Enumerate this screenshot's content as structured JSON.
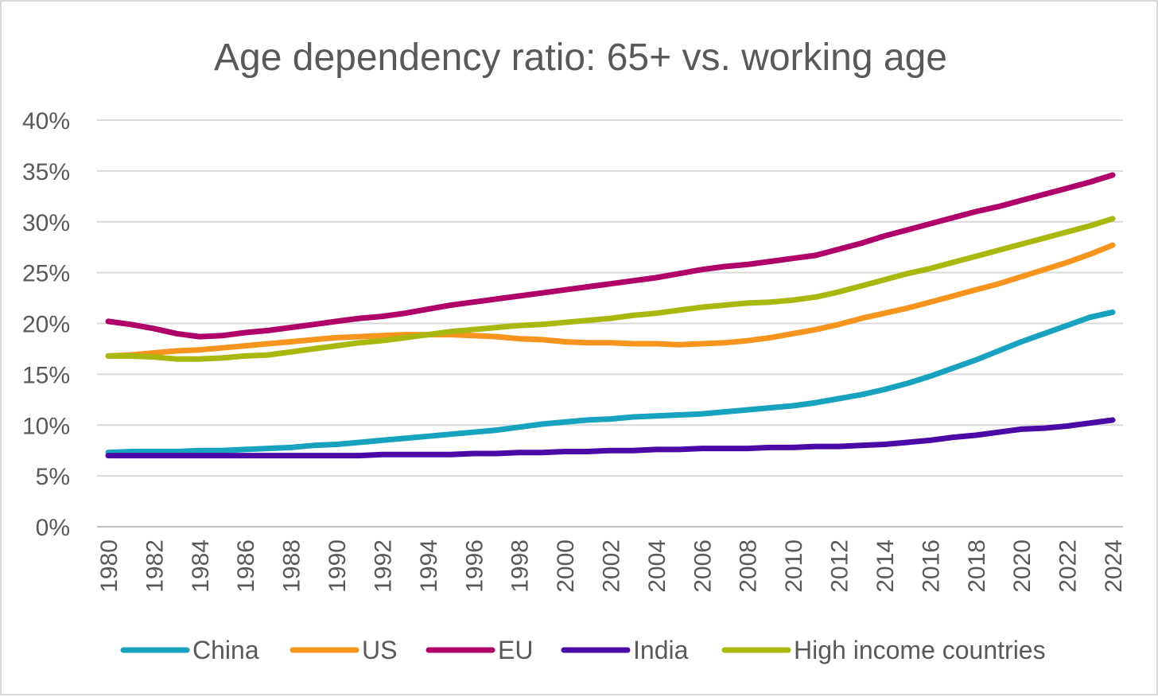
{
  "chart_data": {
    "type": "line",
    "title": "Age dependency ratio: 65+ vs. working age",
    "xlabel": "",
    "ylabel": "",
    "ylim": [
      0,
      40
    ],
    "y_ticks": [
      "0%",
      "5%",
      "10%",
      "15%",
      "20%",
      "25%",
      "30%",
      "35%",
      "40%"
    ],
    "y_tick_values": [
      0,
      5,
      10,
      15,
      20,
      25,
      30,
      35,
      40
    ],
    "grid": true,
    "legend_position": "bottom",
    "x": [
      1980,
      1981,
      1982,
      1983,
      1984,
      1985,
      1986,
      1987,
      1988,
      1989,
      1990,
      1991,
      1992,
      1993,
      1994,
      1995,
      1996,
      1997,
      1998,
      1999,
      2000,
      2001,
      2002,
      2003,
      2004,
      2005,
      2006,
      2007,
      2008,
      2009,
      2010,
      2011,
      2012,
      2013,
      2014,
      2015,
      2016,
      2017,
      2018,
      2019,
      2020,
      2021,
      2022,
      2023,
      2024
    ],
    "x_tick_labels": [
      "1980",
      "1982",
      "1984",
      "1986",
      "1988",
      "1990",
      "1992",
      "1994",
      "1996",
      "1998",
      "2000",
      "2002",
      "2004",
      "2006",
      "2008",
      "2010",
      "2012",
      "2014",
      "2016",
      "2018",
      "2020",
      "2022",
      "2024"
    ],
    "series": [
      {
        "name": "China",
        "color": "#17a2bf",
        "values": [
          7.3,
          7.4,
          7.4,
          7.4,
          7.5,
          7.5,
          7.6,
          7.7,
          7.8,
          8.0,
          8.1,
          8.3,
          8.5,
          8.7,
          8.9,
          9.1,
          9.3,
          9.5,
          9.8,
          10.1,
          10.3,
          10.5,
          10.6,
          10.8,
          10.9,
          11.0,
          11.1,
          11.3,
          11.5,
          11.7,
          11.9,
          12.2,
          12.6,
          13.0,
          13.5,
          14.1,
          14.8,
          15.6,
          16.4,
          17.3,
          18.2,
          19.0,
          19.8,
          20.6,
          21.1
        ]
      },
      {
        "name": "US",
        "color": "#f7941d",
        "values": [
          16.8,
          16.9,
          17.1,
          17.3,
          17.4,
          17.6,
          17.8,
          18.0,
          18.2,
          18.4,
          18.6,
          18.7,
          18.8,
          18.9,
          18.9,
          18.9,
          18.8,
          18.7,
          18.5,
          18.4,
          18.2,
          18.1,
          18.1,
          18.0,
          18.0,
          17.9,
          18.0,
          18.1,
          18.3,
          18.6,
          19.0,
          19.4,
          19.9,
          20.5,
          21.0,
          21.5,
          22.1,
          22.7,
          23.3,
          23.9,
          24.6,
          25.3,
          26.0,
          26.8,
          27.7
        ]
      },
      {
        "name": "EU",
        "color": "#b0006a",
        "values": [
          20.2,
          19.9,
          19.5,
          19.0,
          18.7,
          18.8,
          19.1,
          19.3,
          19.6,
          19.9,
          20.2,
          20.5,
          20.7,
          21.0,
          21.4,
          21.8,
          22.1,
          22.4,
          22.7,
          23.0,
          23.3,
          23.6,
          23.9,
          24.2,
          24.5,
          24.9,
          25.3,
          25.6,
          25.8,
          26.1,
          26.4,
          26.7,
          27.3,
          27.9,
          28.6,
          29.2,
          29.8,
          30.4,
          31.0,
          31.5,
          32.1,
          32.7,
          33.3,
          33.9,
          34.6
        ]
      },
      {
        "name": "India",
        "color": "#4b0aa8",
        "values": [
          7.0,
          7.0,
          7.0,
          7.0,
          7.0,
          7.0,
          7.0,
          7.0,
          7.0,
          7.0,
          7.0,
          7.0,
          7.1,
          7.1,
          7.1,
          7.1,
          7.2,
          7.2,
          7.3,
          7.3,
          7.4,
          7.4,
          7.5,
          7.5,
          7.6,
          7.6,
          7.7,
          7.7,
          7.7,
          7.8,
          7.8,
          7.9,
          7.9,
          8.0,
          8.1,
          8.3,
          8.5,
          8.8,
          9.0,
          9.3,
          9.6,
          9.7,
          9.9,
          10.2,
          10.5
        ]
      },
      {
        "name": "High income countries",
        "color": "#a8b80f",
        "values": [
          16.8,
          16.8,
          16.7,
          16.5,
          16.5,
          16.6,
          16.8,
          16.9,
          17.2,
          17.5,
          17.8,
          18.1,
          18.3,
          18.6,
          18.9,
          19.2,
          19.4,
          19.6,
          19.8,
          19.9,
          20.1,
          20.3,
          20.5,
          20.8,
          21.0,
          21.3,
          21.6,
          21.8,
          22.0,
          22.1,
          22.3,
          22.6,
          23.1,
          23.7,
          24.3,
          24.9,
          25.4,
          26.0,
          26.6,
          27.2,
          27.8,
          28.4,
          29.0,
          29.6,
          30.3
        ]
      }
    ]
  }
}
